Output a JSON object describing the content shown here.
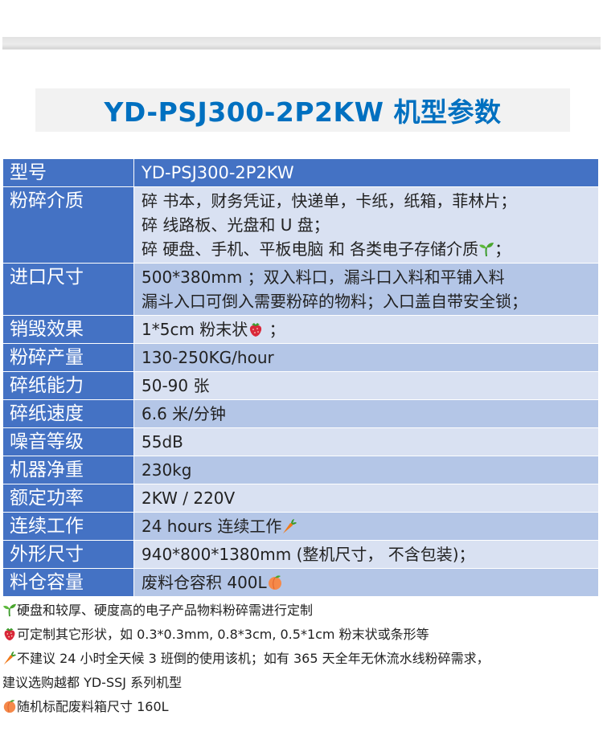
{
  "title": "YD-PSJ300-2P2KW 机型参数",
  "colors": {
    "title": "#0070c0",
    "key_bg": "#4472c4",
    "row_light": "#d9e1f2",
    "row_dark": "#b4c6e7"
  },
  "table": [
    {
      "key": "型号",
      "lines": [
        {
          "text": "YD-PSJ300-2P2KW"
        }
      ]
    },
    {
      "key": "粉碎介质",
      "lines": [
        {
          "text": "碎 书本，财务凭证，快递单，卡纸，纸箱，菲林片；"
        },
        {
          "text": "碎 线路板、光盘和 U 盘；"
        },
        {
          "text": "碎 硬盘、手机、平板电脑 和 各类电子存储介质",
          "icon": "seedling-icon",
          "tail": "；"
        }
      ]
    },
    {
      "key": "进口尺寸",
      "lines": [
        {
          "text": "500*380mm ；双入料口，漏斗口入料和平铺入料"
        },
        {
          "text": "漏斗入口可倒入需要粉碎的物料；入口盖自带安全锁；"
        }
      ]
    },
    {
      "key": "销毁效果",
      "lines": [
        {
          "text": "1*5cm 粉末状",
          "icon": "strawberry-icon",
          "tail": " ；"
        }
      ]
    },
    {
      "key": "粉碎产量",
      "lines": [
        {
          "text": "130-250KG/hour"
        }
      ]
    },
    {
      "key": "碎纸能力",
      "lines": [
        {
          "text": "50-90 张"
        }
      ]
    },
    {
      "key": "碎纸速度",
      "lines": [
        {
          "text": "6.6 米/分钟"
        }
      ]
    },
    {
      "key": "噪音等级",
      "lines": [
        {
          "text": "55dB"
        }
      ]
    },
    {
      "key": "机器净重",
      "lines": [
        {
          "text": "230kg"
        }
      ]
    },
    {
      "key": "额定功率",
      "lines": [
        {
          "text": "2KW / 220V"
        }
      ]
    },
    {
      "key": "连续工作",
      "lines": [
        {
          "text": "24 hours 连续工作",
          "icon": "carrot-icon"
        }
      ]
    },
    {
      "key": "外形尺寸",
      "lines": [
        {
          "text": "940*800*1380mm (整机尺寸， 不含包装)；"
        }
      ]
    },
    {
      "key": "料仓容量",
      "lines": [
        {
          "text": "废料仓容积 400L",
          "icon": "peach-icon"
        }
      ]
    }
  ],
  "notes": [
    {
      "icon": "seedling-icon",
      "text": "硬盘和较厚、硬度高的电子产品物料粉碎需进行定制"
    },
    {
      "icon": "strawberry-icon",
      "text": "可定制其它形状，如 0.3*0.3mm, 0.8*3cm, 0.5*1cm 粉末状或条形等"
    },
    {
      "icon": "carrot-icon",
      "text": "不建议 24 小时全天候 3 班倒的使用该机；如有 365 天全年无休流水线粉碎需求，"
    },
    {
      "text": "建议选购越都 YD-SSJ 系列机型"
    },
    {
      "icon": "peach-icon",
      "text": "随机标配废料箱尺寸 160L"
    }
  ]
}
